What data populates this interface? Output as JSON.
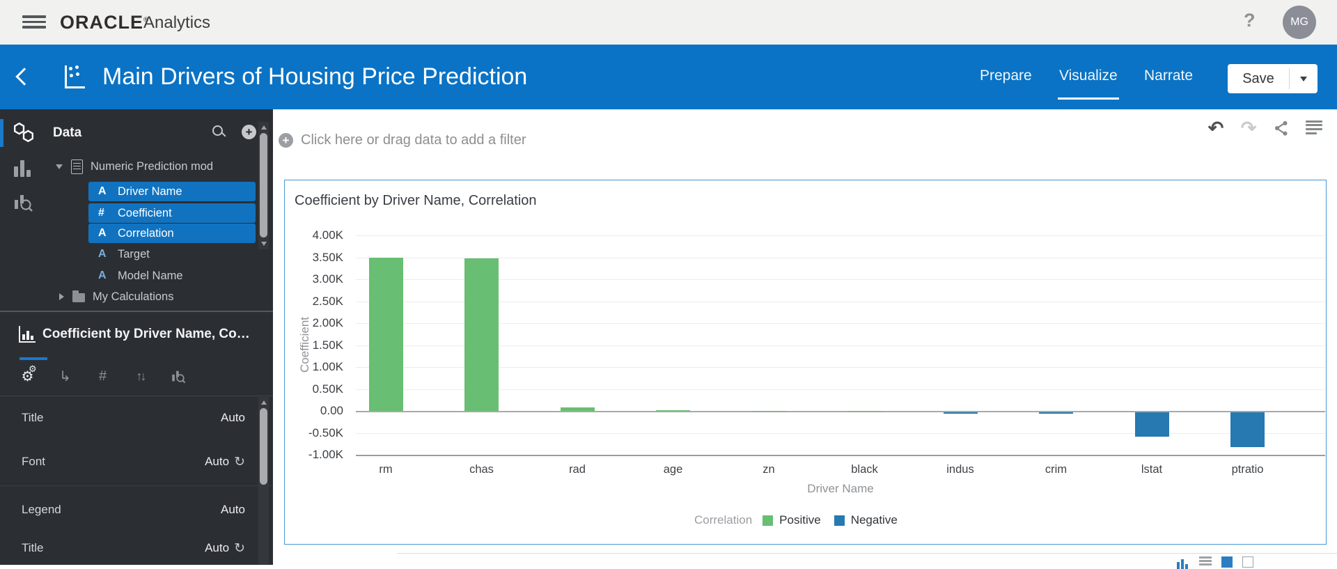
{
  "app_bar": {
    "brand": "ORACLE",
    "registered_mark": "®",
    "product": "Analytics",
    "help_label": "?",
    "avatar_initials": "MG"
  },
  "header": {
    "title": "Main Drivers of Housing Price Prediction",
    "tabs": [
      {
        "label": "Prepare",
        "active": false
      },
      {
        "label": "Visualize",
        "active": true
      },
      {
        "label": "Narrate",
        "active": false
      }
    ],
    "save_label": "Save"
  },
  "sidebar": {
    "data_panel": {
      "title": "Data",
      "dataset": "Numeric Prediction mod",
      "fields": [
        {
          "name": "Driver Name",
          "type": "text",
          "icon": "A",
          "selected": true
        },
        {
          "name": "Coefficient",
          "type": "number",
          "icon": "#",
          "selected": true
        },
        {
          "name": "Correlation",
          "type": "text",
          "icon": "A",
          "selected": true
        },
        {
          "name": "Target",
          "type": "text",
          "icon": "A",
          "selected": false
        },
        {
          "name": "Model Name",
          "type": "text",
          "icon": "A",
          "selected": false
        }
      ],
      "folder": "My Calculations"
    },
    "viz_panel": {
      "title": "Coefficient by Driver Name, Correlation",
      "settings": [
        {
          "label": "Title",
          "value": "Auto",
          "refresh": false
        },
        {
          "label": "Font",
          "value": "Auto",
          "refresh": true
        },
        {
          "label": "Legend",
          "value": "Auto",
          "refresh": false
        },
        {
          "label": "Title",
          "value": "Auto",
          "refresh": true
        }
      ]
    }
  },
  "canvas": {
    "filter_prompt": "Click here or drag data to add a filter"
  },
  "chart_data": {
    "type": "bar",
    "title": "Coefficient by Driver Name, Correlation",
    "xlabel": "Driver Name",
    "ylabel": "Coefficient",
    "ylim": [
      -1000,
      4000
    ],
    "grid": true,
    "categories": [
      "rm",
      "chas",
      "rad",
      "age",
      "zn",
      "black",
      "indus",
      "crim",
      "lstat",
      "ptratio"
    ],
    "series": [
      {
        "name": "Coefficient",
        "values": [
          3500,
          3480,
          80,
          10,
          5,
          2,
          -30,
          -35,
          -550,
          -790
        ]
      }
    ],
    "point_groups": [
      "Positive",
      "Positive",
      "Positive",
      "Positive",
      "Positive",
      "Positive",
      "Negative",
      "Negative",
      "Negative",
      "Negative"
    ],
    "yticks": [
      {
        "v": 4000,
        "label": "4.00K"
      },
      {
        "v": 3500,
        "label": "3.50K"
      },
      {
        "v": 3000,
        "label": "3.00K"
      },
      {
        "v": 2500,
        "label": "2.50K"
      },
      {
        "v": 2000,
        "label": "2.00K"
      },
      {
        "v": 1500,
        "label": "1.50K"
      },
      {
        "v": 1000,
        "label": "1.00K"
      },
      {
        "v": 500,
        "label": "0.50K"
      },
      {
        "v": 0,
        "label": "0.00"
      },
      {
        "v": -500,
        "label": "-0.50K"
      },
      {
        "v": -1000,
        "label": "-1.00K"
      }
    ],
    "legend": {
      "title": "Correlation",
      "position": "bottom",
      "entries": [
        {
          "label": "Positive",
          "color": "#68be72"
        },
        {
          "label": "Negative",
          "color": "#2679b1"
        }
      ]
    }
  }
}
